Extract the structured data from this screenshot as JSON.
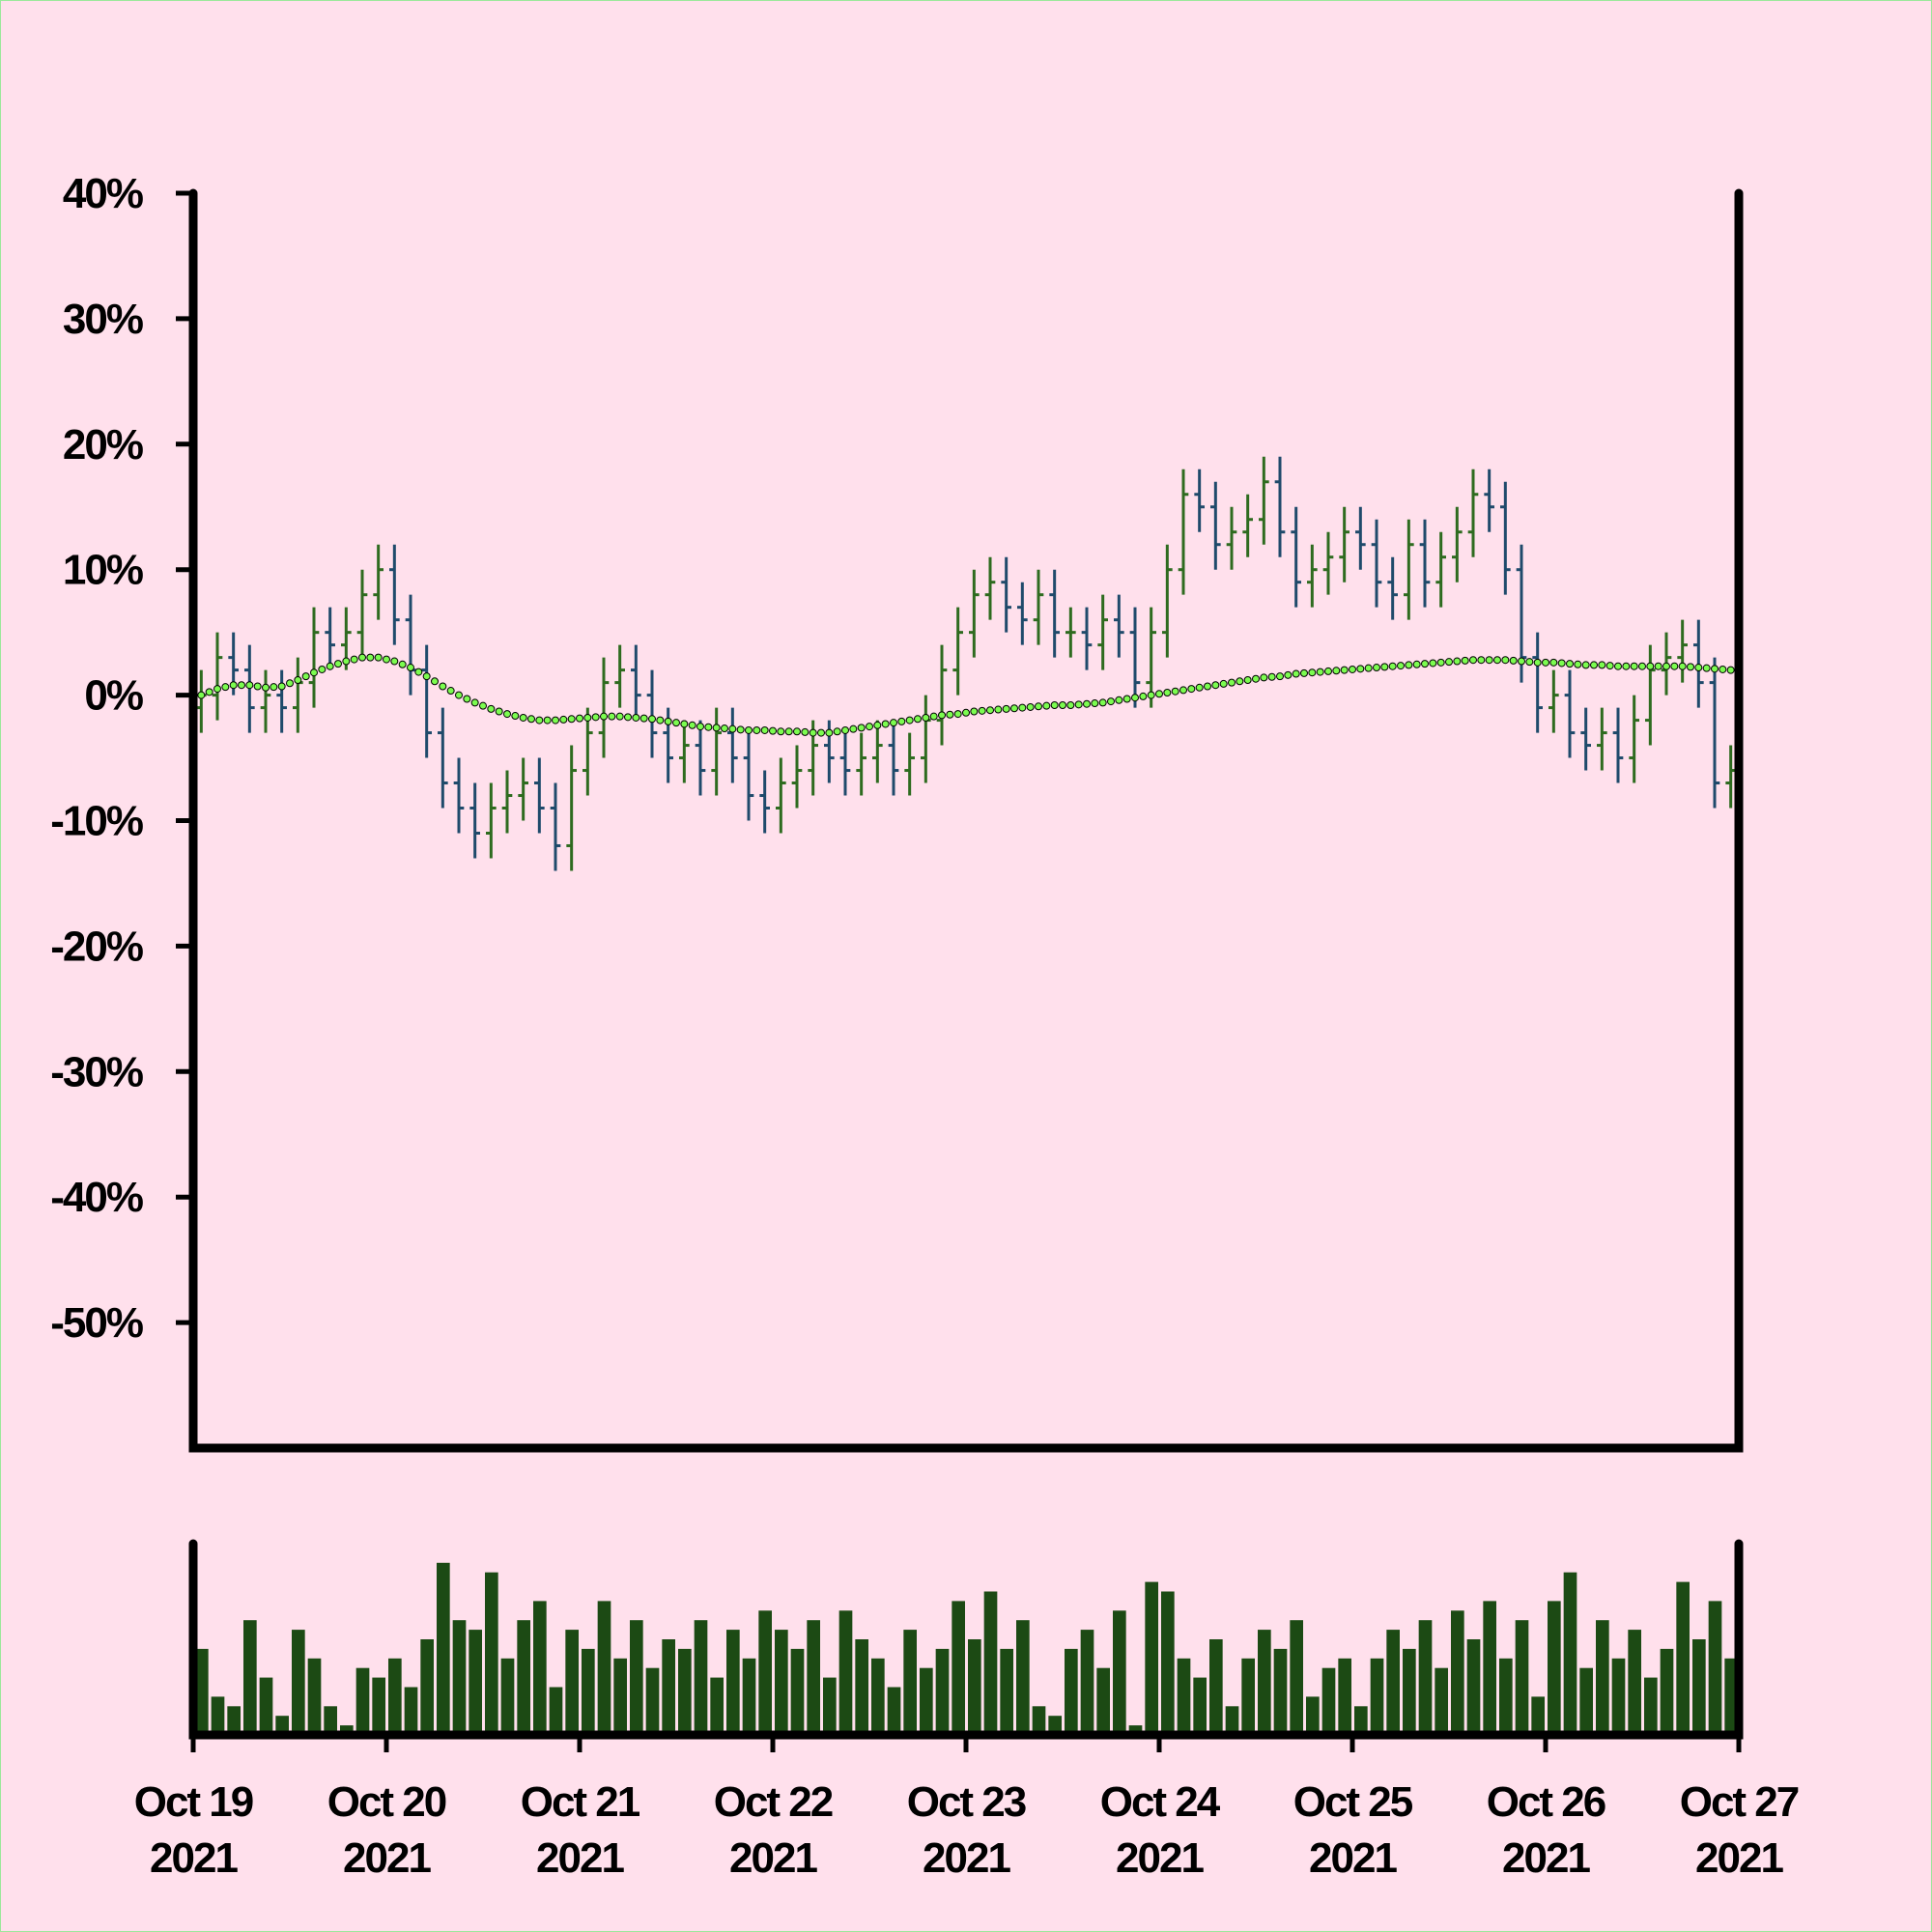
{
  "chart_data": {
    "type": "ohlc",
    "x": [
      "2021-10-19T00:00",
      "2021-10-19T02:00",
      "2021-10-19T04:00",
      "2021-10-19T06:00",
      "2021-10-19T08:00",
      "2021-10-19T10:00",
      "2021-10-19T12:00",
      "2021-10-19T14:00",
      "2021-10-19T16:00",
      "2021-10-19T18:00",
      "2021-10-19T20:00",
      "2021-10-19T22:00",
      "2021-10-20T00:00",
      "2021-10-20T02:00",
      "2021-10-20T04:00",
      "2021-10-20T06:00",
      "2021-10-20T08:00",
      "2021-10-20T10:00",
      "2021-10-20T12:00",
      "2021-10-20T14:00",
      "2021-10-20T16:00",
      "2021-10-20T18:00",
      "2021-10-20T20:00",
      "2021-10-20T22:00",
      "2021-10-21T00:00",
      "2021-10-21T02:00",
      "2021-10-21T04:00",
      "2021-10-21T06:00",
      "2021-10-21T08:00",
      "2021-10-21T10:00",
      "2021-10-21T12:00",
      "2021-10-21T14:00",
      "2021-10-21T16:00",
      "2021-10-21T18:00",
      "2021-10-21T20:00",
      "2021-10-21T22:00",
      "2021-10-22T00:00",
      "2021-10-22T02:00",
      "2021-10-22T04:00",
      "2021-10-22T06:00",
      "2021-10-22T08:00",
      "2021-10-22T10:00",
      "2021-10-22T12:00",
      "2021-10-22T14:00",
      "2021-10-22T16:00",
      "2021-10-22T18:00",
      "2021-10-22T20:00",
      "2021-10-22T22:00",
      "2021-10-23T00:00",
      "2021-10-23T02:00",
      "2021-10-23T04:00",
      "2021-10-23T06:00",
      "2021-10-23T08:00",
      "2021-10-23T10:00",
      "2021-10-23T12:00",
      "2021-10-23T14:00",
      "2021-10-23T16:00",
      "2021-10-23T18:00",
      "2021-10-23T20:00",
      "2021-10-23T22:00",
      "2021-10-24T00:00",
      "2021-10-24T02:00",
      "2021-10-24T04:00",
      "2021-10-24T06:00",
      "2021-10-24T08:00",
      "2021-10-24T10:00",
      "2021-10-24T12:00",
      "2021-10-24T14:00",
      "2021-10-24T16:00",
      "2021-10-24T18:00",
      "2021-10-24T20:00",
      "2021-10-24T22:00",
      "2021-10-25T00:00",
      "2021-10-25T02:00",
      "2021-10-25T04:00",
      "2021-10-25T06:00",
      "2021-10-25T08:00",
      "2021-10-25T10:00",
      "2021-10-25T12:00",
      "2021-10-25T14:00",
      "2021-10-25T16:00",
      "2021-10-25T18:00",
      "2021-10-25T20:00",
      "2021-10-25T22:00",
      "2021-10-26T00:00",
      "2021-10-26T02:00",
      "2021-10-26T04:00",
      "2021-10-26T06:00",
      "2021-10-26T08:00",
      "2021-10-26T10:00",
      "2021-10-26T12:00",
      "2021-10-26T14:00",
      "2021-10-26T16:00",
      "2021-10-26T18:00",
      "2021-10-26T20:00",
      "2021-10-26T22:00"
    ],
    "open": [
      -1,
      0,
      3,
      2,
      -1,
      0,
      -1,
      1,
      5,
      4,
      5,
      8,
      10,
      6,
      2,
      -3,
      -7,
      -9,
      -11,
      -9,
      -8,
      -7,
      -9,
      -12,
      -6,
      -3,
      1,
      2,
      0,
      -3,
      -5,
      -4,
      -6,
      -3,
      -5,
      -8,
      -9,
      -7,
      -6,
      -4,
      -5,
      -6,
      -5,
      -4,
      -6,
      -5,
      -2,
      2,
      5,
      8,
      9,
      7,
      6,
      8,
      5,
      5,
      4,
      6,
      5,
      1,
      5,
      10,
      16,
      15,
      12,
      13,
      14,
      17,
      13,
      9,
      10,
      11,
      13,
      12,
      9,
      8,
      12,
      9,
      11,
      13,
      16,
      15,
      10,
      3,
      -1,
      0,
      -3,
      -4,
      -3,
      -5,
      -2,
      2,
      3,
      4,
      1,
      -7
    ],
    "high": [
      2,
      5,
      5,
      4,
      2,
      2,
      3,
      7,
      7,
      7,
      10,
      12,
      12,
      8,
      4,
      -1,
      -5,
      -7,
      -7,
      -6,
      -5,
      -5,
      -7,
      -4,
      -1,
      3,
      4,
      4,
      2,
      -1,
      -2,
      -2,
      -1,
      -1,
      -3,
      -6,
      -5,
      -4,
      -2,
      -2,
      -3,
      -3,
      -2,
      -2,
      -3,
      0,
      4,
      7,
      10,
      11,
      11,
      9,
      10,
      10,
      7,
      7,
      8,
      8,
      7,
      7,
      12,
      18,
      18,
      17,
      15,
      16,
      19,
      19,
      15,
      12,
      13,
      15,
      15,
      14,
      11,
      14,
      14,
      13,
      15,
      18,
      18,
      17,
      12,
      5,
      2,
      2,
      -1,
      -1,
      -1,
      0,
      4,
      5,
      6,
      6,
      3,
      -4
    ],
    "low": [
      -3,
      -2,
      0,
      -3,
      -3,
      -3,
      -3,
      -1,
      2,
      2,
      3,
      6,
      4,
      0,
      -5,
      -9,
      -11,
      -13,
      -13,
      -11,
      -10,
      -11,
      -14,
      -14,
      -8,
      -5,
      -1,
      -2,
      -5,
      -7,
      -7,
      -8,
      -8,
      -7,
      -10,
      -11,
      -11,
      -9,
      -8,
      -7,
      -8,
      -8,
      -7,
      -8,
      -8,
      -7,
      -4,
      0,
      3,
      6,
      5,
      4,
      4,
      3,
      3,
      2,
      2,
      3,
      -1,
      -1,
      3,
      8,
      13,
      10,
      10,
      11,
      12,
      11,
      7,
      7,
      8,
      9,
      10,
      7,
      6,
      6,
      7,
      7,
      9,
      11,
      13,
      8,
      1,
      -3,
      -3,
      -5,
      -6,
      -6,
      -7,
      -7,
      -4,
      0,
      1,
      -1,
      -9,
      -9
    ],
    "close": [
      0,
      3,
      2,
      -1,
      0,
      -1,
      1,
      5,
      4,
      5,
      8,
      10,
      6,
      2,
      -3,
      -7,
      -9,
      -11,
      -9,
      -8,
      -7,
      -9,
      -12,
      -6,
      -3,
      1,
      2,
      0,
      -3,
      -5,
      -4,
      -6,
      -3,
      -5,
      -8,
      -9,
      -7,
      -6,
      -4,
      -5,
      -6,
      -5,
      -4,
      -6,
      -5,
      -2,
      2,
      5,
      8,
      9,
      7,
      6,
      8,
      5,
      5,
      4,
      6,
      5,
      1,
      5,
      10,
      16,
      15,
      12,
      13,
      14,
      17,
      13,
      9,
      10,
      11,
      13,
      12,
      9,
      8,
      12,
      9,
      11,
      13,
      16,
      15,
      10,
      3,
      -1,
      0,
      -3,
      -4,
      -3,
      -5,
      -2,
      2,
      3,
      4,
      1,
      -7,
      -6
    ],
    "up_color": "#2e6b1f",
    "down_color": "#1f4a6b",
    "ma": [
      0,
      0.5,
      0.8,
      0.8,
      0.6,
      0.7,
      1.2,
      1.8,
      2.3,
      2.7,
      3.0,
      3.0,
      2.7,
      2.2,
      1.5,
      0.7,
      0,
      -0.6,
      -1.1,
      -1.5,
      -1.8,
      -2.0,
      -2.0,
      -1.9,
      -1.8,
      -1.7,
      -1.7,
      -1.8,
      -1.9,
      -2.1,
      -2.3,
      -2.5,
      -2.6,
      -2.7,
      -2.8,
      -2.8,
      -2.9,
      -2.9,
      -3.0,
      -3.0,
      -2.8,
      -2.6,
      -2.4,
      -2.2,
      -2.0,
      -1.8,
      -1.6,
      -1.5,
      -1.3,
      -1.2,
      -1.1,
      -1.0,
      -0.9,
      -0.8,
      -0.8,
      -0.7,
      -0.6,
      -0.4,
      -0.2,
      0,
      0.2,
      0.4,
      0.6,
      0.8,
      1.0,
      1.2,
      1.4,
      1.5,
      1.7,
      1.8,
      1.9,
      2.0,
      2.1,
      2.2,
      2.3,
      2.4,
      2.5,
      2.6,
      2.7,
      2.8,
      2.8,
      2.8,
      2.7,
      2.6,
      2.6,
      2.5,
      2.4,
      2.4,
      2.3,
      2.3,
      2.3,
      2.3,
      2.3,
      2.2,
      2.1,
      2.0
    ],
    "ma_color": "#7cfc50",
    "ylim": [
      -60,
      40
    ],
    "yticks": [
      {
        "value": 40,
        "label": "40%"
      },
      {
        "value": 30,
        "label": "30%"
      },
      {
        "value": 20,
        "label": "20%"
      },
      {
        "value": 10,
        "label": "10%"
      },
      {
        "value": 0,
        "label": "0%"
      },
      {
        "value": -10,
        "label": "-10%"
      },
      {
        "value": -20,
        "label": "-20%"
      },
      {
        "value": -30,
        "label": "-30%"
      },
      {
        "value": -40,
        "label": "-40%"
      },
      {
        "value": -50,
        "label": "-50%"
      }
    ],
    "xlim": [
      "2021-10-19T00:00",
      "2021-10-27T00:00"
    ],
    "xticks": [
      {
        "value": "2021-10-19T00:00",
        "label": "Oct 19\n2021"
      },
      {
        "value": "2021-10-20T00:00",
        "label": "Oct 20\n2021"
      },
      {
        "value": "2021-10-21T00:00",
        "label": "Oct 21\n2021"
      },
      {
        "value": "2021-10-22T00:00",
        "label": "Oct 22\n2021"
      },
      {
        "value": "2021-10-23T00:00",
        "label": "Oct 23\n2021"
      },
      {
        "value": "2021-10-24T00:00",
        "label": "Oct 24\n2021"
      },
      {
        "value": "2021-10-25T00:00",
        "label": "Oct 25\n2021"
      },
      {
        "value": "2021-10-26T00:00",
        "label": "Oct 26\n2021"
      },
      {
        "value": "2021-10-27T00:00",
        "label": "Oct 27\n2021"
      }
    ],
    "volume": {
      "color": "#1c4a14",
      "ylim": [
        0,
        100
      ],
      "values": [
        45,
        20,
        15,
        60,
        30,
        10,
        55,
        40,
        15,
        5,
        35,
        30,
        40,
        25,
        50,
        90,
        60,
        55,
        85,
        40,
        60,
        70,
        25,
        55,
        45,
        70,
        40,
        60,
        35,
        50,
        45,
        60,
        30,
        55,
        40,
        65,
        55,
        45,
        60,
        30,
        65,
        50,
        40,
        25,
        55,
        35,
        45,
        70,
        50,
        75,
        45,
        60,
        15,
        10,
        45,
        55,
        35,
        65,
        5,
        80,
        75,
        40,
        30,
        50,
        15,
        40,
        55,
        45,
        60,
        20,
        35,
        40,
        15,
        40,
        55,
        45,
        60,
        35,
        65,
        50,
        70,
        40,
        60,
        20,
        70,
        85,
        35,
        60,
        40,
        55,
        30,
        45,
        80,
        50,
        70,
        40
      ]
    }
  }
}
